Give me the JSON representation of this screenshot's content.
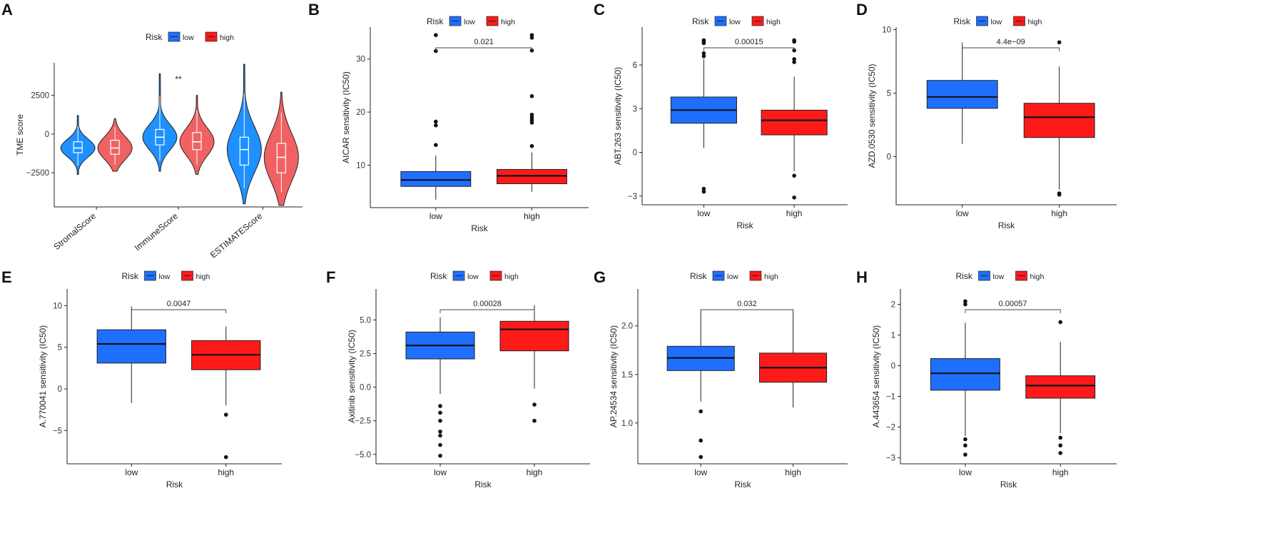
{
  "colors": {
    "low": "#1f6fff",
    "high": "#ff1a1a",
    "low_violin": "#1e90ff",
    "high_violin": "#f06262"
  },
  "chart_data": [
    {
      "panel": "A",
      "type": "violin",
      "legend": {
        "title": "Risk",
        "labels": [
          "low",
          "high"
        ]
      },
      "ylabel": "TME score",
      "yticks": [
        -2500,
        0,
        2500
      ],
      "ylim": [
        -4700,
        4600
      ],
      "categories": [
        "StromalScore",
        "ImmuneScore",
        "ESTIMATEScore"
      ],
      "significance": [
        "",
        "**",
        ""
      ],
      "series": [
        {
          "name": "low",
          "groups": [
            {
              "min": -2600,
              "max": 1200,
              "q1": -1200,
              "median": -900,
              "q3": -500
            },
            {
              "min": -2400,
              "max": 3900,
              "q1": -700,
              "median": -200,
              "q3": 300
            },
            {
              "min": -4500,
              "max": 4500,
              "q1": -2000,
              "median": -1000,
              "q3": -200
            }
          ]
        },
        {
          "name": "high",
          "groups": [
            {
              "min": -2400,
              "max": 1000,
              "q1": -1300,
              "median": -900,
              "q3": -400
            },
            {
              "min": -2600,
              "max": 2500,
              "q1": -1000,
              "median": -500,
              "q3": 100
            },
            {
              "min": -4600,
              "max": 2700,
              "q1": -2500,
              "median": -1500,
              "q3": -600
            }
          ]
        }
      ]
    },
    {
      "panel": "B",
      "type": "box",
      "legend": {
        "title": "Risk",
        "labels": [
          "low",
          "high"
        ]
      },
      "ylabel": "AICAR sensitivity (IC50)",
      "xlabel": "Risk",
      "categories": [
        "low",
        "high"
      ],
      "pvalue": "0.021",
      "yticks": [
        10,
        20,
        30
      ],
      "ylim": [
        2,
        36
      ],
      "boxes": [
        {
          "min": 3.5,
          "q1": 6.0,
          "median": 7.2,
          "q3": 8.8,
          "max": 11.8,
          "outliers": [
            13.8,
            17.5,
            18.2,
            31.5,
            34.5
          ]
        },
        {
          "min": 5.0,
          "q1": 6.5,
          "median": 8.0,
          "q3": 9.2,
          "max": 12.4,
          "outliers": [
            13.6,
            18.0,
            18.5,
            19.0,
            19.5,
            23.0,
            31.6,
            34.0,
            34.5
          ]
        }
      ]
    },
    {
      "panel": "C",
      "type": "box",
      "legend": {
        "title": "Risk",
        "labels": [
          "low",
          "high"
        ]
      },
      "ylabel": "ABT.263 sensitivity (IC50)",
      "xlabel": "Risk",
      "categories": [
        "low",
        "high"
      ],
      "pvalue": "0.00015",
      "yticks": [
        -3,
        0,
        3,
        6
      ],
      "ylim": [
        -3.6,
        8.6
      ],
      "boxes": [
        {
          "min": 0.3,
          "q1": 2.0,
          "median": 2.9,
          "q3": 3.8,
          "max": 6.4,
          "outliers": [
            6.6,
            6.8,
            7.5,
            7.6,
            7.7,
            -2.5,
            -2.7
          ]
        },
        {
          "min": -1.3,
          "q1": 1.2,
          "median": 2.2,
          "q3": 2.9,
          "max": 5.2,
          "outliers": [
            6.2,
            6.4,
            7.0,
            7.6,
            7.7,
            -1.6,
            -3.1
          ]
        }
      ]
    },
    {
      "panel": "D",
      "type": "box",
      "legend": {
        "title": "Risk",
        "labels": [
          "low",
          "high"
        ]
      },
      "ylabel": "AZD.0530 sensitivity (IC50)",
      "xlabel": "Risk",
      "categories": [
        "low",
        "high"
      ],
      "pvalue": "4.4e−09",
      "yticks": [
        0,
        5,
        10
      ],
      "ylim": [
        -3.8,
        10.2
      ],
      "boxes": [
        {
          "min": 1.0,
          "q1": 3.8,
          "median": 4.7,
          "q3": 6.0,
          "max": 9.0,
          "outliers": []
        },
        {
          "min": -2.6,
          "q1": 1.5,
          "median": 3.1,
          "q3": 4.2,
          "max": 7.1,
          "outliers": [
            9.0,
            -2.9,
            -3.0
          ]
        }
      ]
    },
    {
      "panel": "E",
      "type": "box",
      "legend": {
        "title": "Risk",
        "labels": [
          "low",
          "high"
        ]
      },
      "ylabel": "A.770041 sensitivity (IC50)",
      "xlabel": "Risk",
      "categories": [
        "low",
        "high"
      ],
      "pvalue": "0.0047",
      "yticks": [
        -5,
        0,
        5,
        10
      ],
      "ylim": [
        -9,
        12
      ],
      "boxes": [
        {
          "min": -1.7,
          "q1": 3.1,
          "median": 5.4,
          "q3": 7.1,
          "max": 9.9,
          "outliers": []
        },
        {
          "min": -2.0,
          "q1": 2.3,
          "median": 4.1,
          "q3": 5.8,
          "max": 7.5,
          "outliers": [
            -3.1,
            -8.2
          ]
        }
      ]
    },
    {
      "panel": "F",
      "type": "box",
      "legend": {
        "title": "Risk",
        "labels": [
          "low",
          "high"
        ]
      },
      "ylabel": "Axitinib sensitivity (IC50)",
      "xlabel": "Risk",
      "categories": [
        "low",
        "high"
      ],
      "pvalue": "0.00028",
      "yticks": [
        -5.0,
        -2.5,
        0.0,
        2.5,
        5.0
      ],
      "ylim": [
        -5.7,
        7.3
      ],
      "yticklabels": [
        "-5.0",
        "-2.5",
        "0.0",
        "2.5",
        "5.0"
      ],
      "boxes": [
        {
          "min": -0.5,
          "q1": 2.1,
          "median": 3.1,
          "q3": 4.1,
          "max": 5.2,
          "outliers": [
            -1.4,
            -1.9,
            -2.5,
            -3.3,
            -3.6,
            -4.3,
            -5.1
          ]
        },
        {
          "min": -0.1,
          "q1": 2.7,
          "median": 4.3,
          "q3": 4.9,
          "max": 6.1,
          "outliers": [
            -1.3,
            -2.5
          ]
        }
      ]
    },
    {
      "panel": "G",
      "type": "box",
      "legend": {
        "title": "Risk",
        "labels": [
          "low",
          "high"
        ]
      },
      "ylabel": "AP.24534 sensitivity (IC50)",
      "xlabel": "Risk",
      "categories": [
        "low",
        "high"
      ],
      "pvalue": "0.032",
      "yticks": [
        1.0,
        1.5,
        2.0
      ],
      "ylim": [
        0.58,
        2.38
      ],
      "yticklabels": [
        "1.0",
        "1.5",
        "2.0"
      ],
      "boxes": [
        {
          "min": 1.22,
          "q1": 1.54,
          "median": 1.67,
          "q3": 1.79,
          "max": 2.17,
          "outliers": [
            1.12,
            0.82,
            0.65
          ]
        },
        {
          "min": 1.16,
          "q1": 1.42,
          "median": 1.57,
          "q3": 1.72,
          "max": 2.17,
          "outliers": []
        }
      ]
    },
    {
      "panel": "H",
      "type": "box",
      "legend": {
        "title": "Risk",
        "labels": [
          "low",
          "high"
        ]
      },
      "ylabel": "A.443654 sensitivity (IC50)",
      "xlabel": "Risk",
      "categories": [
        "low",
        "high"
      ],
      "pvalue": "0.00057",
      "yticks": [
        -3,
        -2,
        -1,
        0,
        1,
        2
      ],
      "ylim": [
        -3.2,
        2.5
      ],
      "boxes": [
        {
          "min": -2.3,
          "q1": -0.8,
          "median": -0.25,
          "q3": 0.23,
          "max": 1.4,
          "outliers": [
            2.0,
            2.1,
            -2.4,
            -2.6,
            -2.9
          ]
        },
        {
          "min": -2.2,
          "q1": -1.06,
          "median": -0.65,
          "q3": -0.33,
          "max": 0.78,
          "outliers": [
            1.42,
            -2.35,
            -2.6,
            -2.85
          ]
        }
      ]
    }
  ]
}
